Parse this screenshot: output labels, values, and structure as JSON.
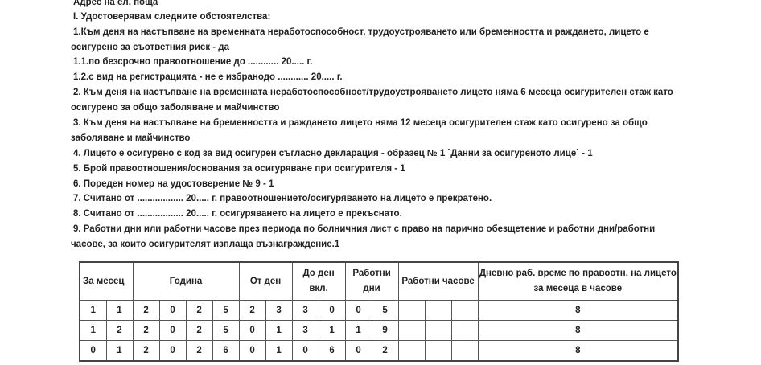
{
  "lines": [
    "Адрес на ел. поща",
    "I. Удостоверявам следните обстоятелства:",
    "1.Към деня на настъпване на временната неработоспособност, трудоустрояването или бременността и раждането, лицето е",
    "осигурено за съответния риск - да",
    "1.1.по безсрочно правоотношение до ............ 20..... г.",
    "1.2.с вид на регистрацията - не е избранодо ............ 20..... г.",
    "2. Към деня на настъпване на временната неработоспособност/трудоустрояването лицето няма 6 месеца осигурителен стаж като",
    "осигурено за общо заболяване и майчинство",
    "3. Към деня на настъпване на бременността и раждането лицето няма 12 месеца осигурителен стаж като осигурено за общо",
    "заболяване и майчинство",
    "4. Лицето е осигурено с код за вид осигурен съгласно декларация - образец № 1 `Данни за осигуреното лице` - 1",
    "5. Брой правоотношения/основания за осигуряване при осигурителя - 1",
    "6. Пореден номер на удостоверение № 9 - 1",
    "7. Считано от .................. 20..... г. правоотношението/осигуряването на лицето е прекратено.",
    "8. Считано от .................. 20..... г. осигуряването на лицето е прекъснато.",
    "9. Работни дни или работни часове през периода по болничния лист с право на парично обезщетение и работни дни/работни",
    "часове, за които осигурителят изплаща възнаграждение.1"
  ],
  "table": {
    "headers": [
      "За месец",
      "Година",
      "От ден",
      "До ден вкл.",
      "Работни дни",
      "Работни часове",
      "Дневно раб. време по правоотн. на лицето за месеца в часове"
    ],
    "rows": [
      {
        "cells": [
          "1",
          "1",
          "2",
          "0",
          "2",
          "5",
          "2",
          "3",
          "3",
          "0",
          "0",
          "5",
          "",
          "",
          ""
        ],
        "hours": "8"
      },
      {
        "cells": [
          "1",
          "2",
          "2",
          "0",
          "2",
          "5",
          "0",
          "1",
          "3",
          "1",
          "1",
          "9",
          "",
          "",
          ""
        ],
        "hours": "8"
      },
      {
        "cells": [
          "0",
          "1",
          "2",
          "0",
          "2",
          "6",
          "0",
          "1",
          "0",
          "6",
          "0",
          "2",
          "",
          "",
          ""
        ],
        "hours": "8"
      }
    ]
  }
}
